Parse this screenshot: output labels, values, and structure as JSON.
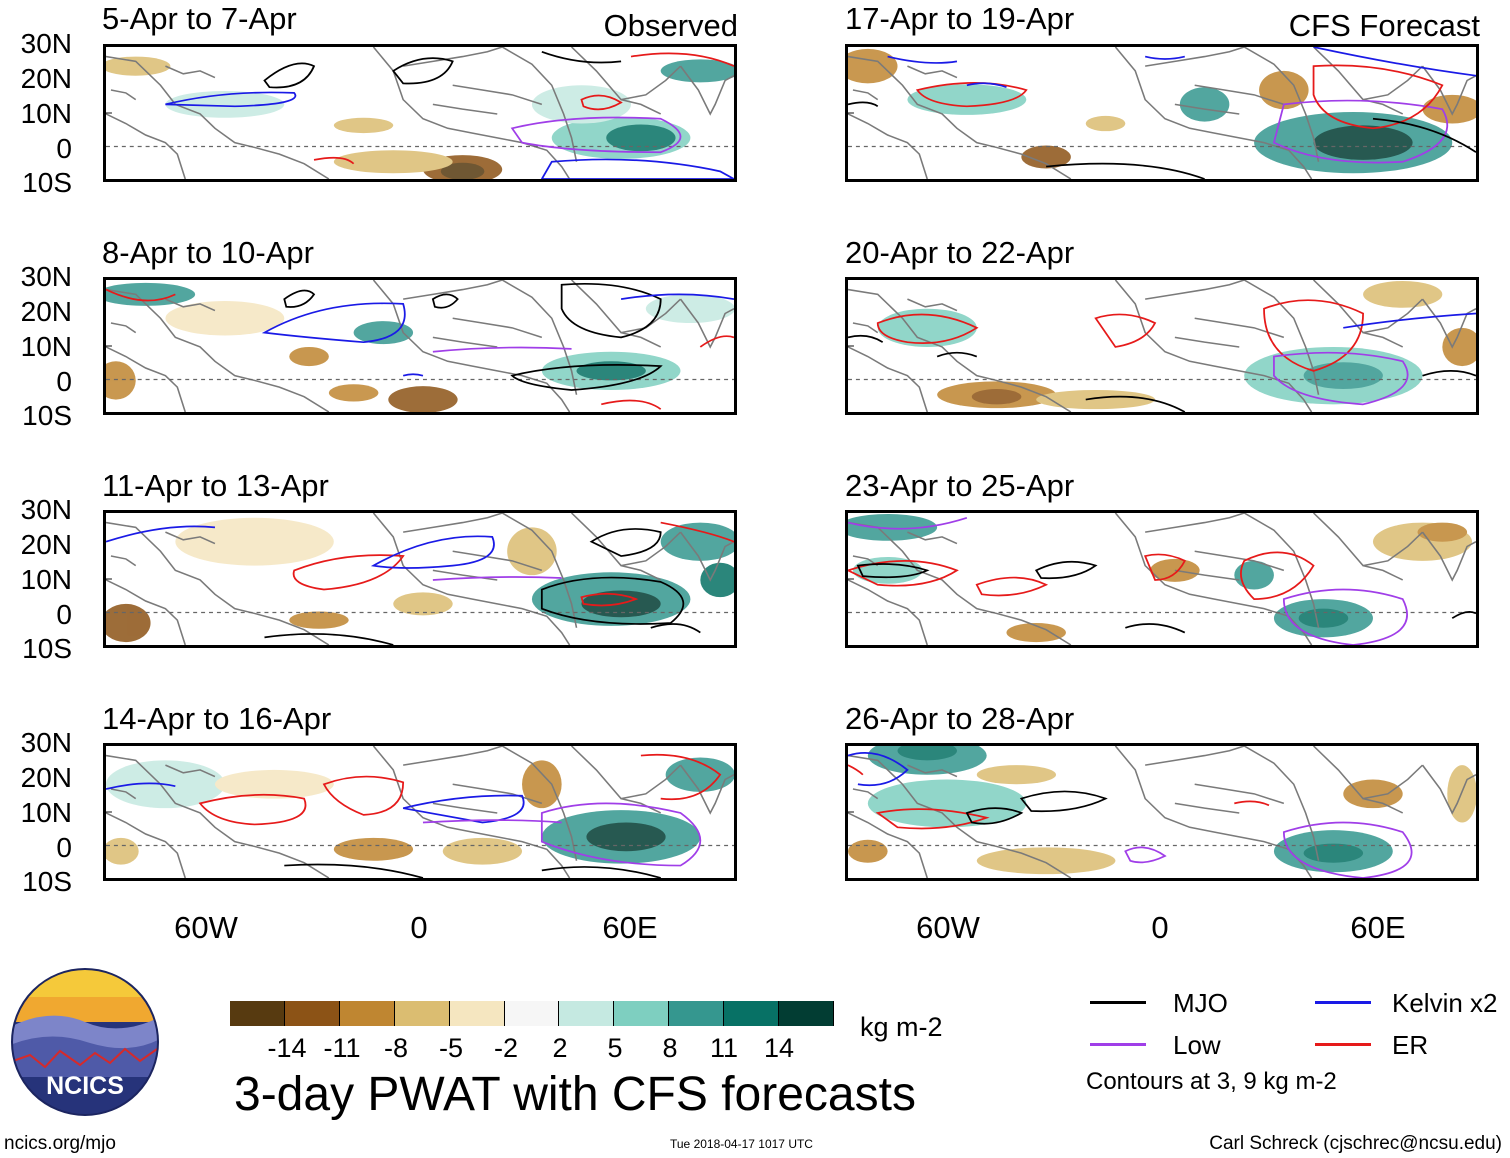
{
  "panels_left_header": "Observed",
  "panels_right_header": "CFS Forecast",
  "panels": [
    {
      "period": "5-Apr to 7-Apr",
      "kind": "observed"
    },
    {
      "period": "8-Apr to 10-Apr",
      "kind": "observed"
    },
    {
      "period": "11-Apr to 13-Apr",
      "kind": "observed"
    },
    {
      "period": "14-Apr to 16-Apr",
      "kind": "observed"
    },
    {
      "period": "17-Apr to 19-Apr",
      "kind": "forecast"
    },
    {
      "period": "20-Apr to 22-Apr",
      "kind": "forecast"
    },
    {
      "period": "23-Apr to 25-Apr",
      "kind": "forecast"
    },
    {
      "period": "26-Apr to 28-Apr",
      "kind": "forecast"
    }
  ],
  "lat_labels": [
    "30N",
    "20N",
    "10N",
    "0",
    "10S"
  ],
  "lon_labels": [
    "60W",
    "0",
    "60E"
  ],
  "colorbar": {
    "unit": "kg m-2",
    "ticks": [
      "-14",
      "-11",
      "-8",
      "-5",
      "-2",
      "2",
      "5",
      "8",
      "11",
      "14"
    ],
    "colors": [
      "#573a10",
      "#8c5316",
      "#bf8631",
      "#dbbd71",
      "#f5e6c0",
      "#f6f6f6",
      "#c5e9e1",
      "#7ecfc0",
      "#35978f",
      "#077165",
      "#023d33"
    ]
  },
  "title": "3-day PWAT with CFS forecasts",
  "legend": {
    "items": [
      {
        "label": "MJO",
        "color": "#000000"
      },
      {
        "label": "Kelvin x2",
        "color": "#1a1ae6"
      },
      {
        "label": "Low",
        "color": "#a03ee8"
      },
      {
        "label": "ER",
        "color": "#e61a1a"
      }
    ],
    "note": "Contours at 3, 9 kg m-2"
  },
  "logo_text": "NCICS",
  "footer": {
    "left": "ncics.org/mjo",
    "center": "Tue 2018-04-17 1017 UTC",
    "right": "Carl Schreck (cjschrec@ncsu.edu)"
  }
}
